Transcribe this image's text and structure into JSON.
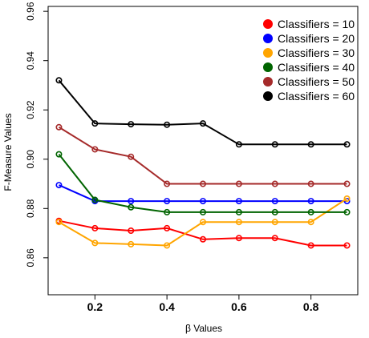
{
  "chart_data": {
    "type": "line",
    "xlabel": "β Values",
    "ylabel": "F-Measure Values",
    "xlim": [
      0.07,
      0.93
    ],
    "ylim": [
      0.845,
      0.962
    ],
    "x_ticks": [
      0.2,
      0.4,
      0.6,
      0.8
    ],
    "x_tick_labels": [
      "0.2",
      "0.4",
      "0.6",
      "0.8"
    ],
    "y_ticks": [
      0.86,
      0.88,
      0.9,
      0.92,
      0.94,
      0.96
    ],
    "y_tick_labels": [
      "0.86",
      "0.88",
      "0.90",
      "0.92",
      "0.94",
      "0.96"
    ],
    "grid": false,
    "legend_position": "top-right",
    "x": [
      0.1,
      0.2,
      0.3,
      0.4,
      0.5,
      0.6,
      0.7,
      0.8,
      0.9
    ],
    "series": [
      {
        "name": "Classifiers = 10",
        "color": "#ff0000",
        "values": [
          0.875,
          0.872,
          0.871,
          0.872,
          0.8675,
          0.868,
          0.868,
          0.865,
          0.865
        ]
      },
      {
        "name": "Classifiers = 20",
        "color": "#0000ff",
        "values": [
          0.8895,
          0.883,
          0.883,
          0.883,
          0.883,
          0.883,
          0.883,
          0.883,
          0.883
        ]
      },
      {
        "name": "Classifiers = 30",
        "color": "#ffa500",
        "values": [
          0.8745,
          0.866,
          0.8655,
          0.865,
          0.8745,
          0.8745,
          0.8745,
          0.8745,
          0.884
        ]
      },
      {
        "name": "Classifiers = 40",
        "color": "#006400",
        "values": [
          0.902,
          0.8835,
          0.8805,
          0.8785,
          0.8785,
          0.8785,
          0.8785,
          0.8785,
          0.8785
        ]
      },
      {
        "name": "Classifiers = 50",
        "color": "#a52a2a",
        "values": [
          0.913,
          0.904,
          0.901,
          0.89,
          0.89,
          0.89,
          0.89,
          0.89,
          0.89
        ]
      },
      {
        "name": "Classifiers = 60",
        "color": "#000000",
        "values": [
          0.932,
          0.9145,
          0.9142,
          0.914,
          0.9145,
          0.906,
          0.906,
          0.906,
          0.906
        ]
      }
    ]
  }
}
